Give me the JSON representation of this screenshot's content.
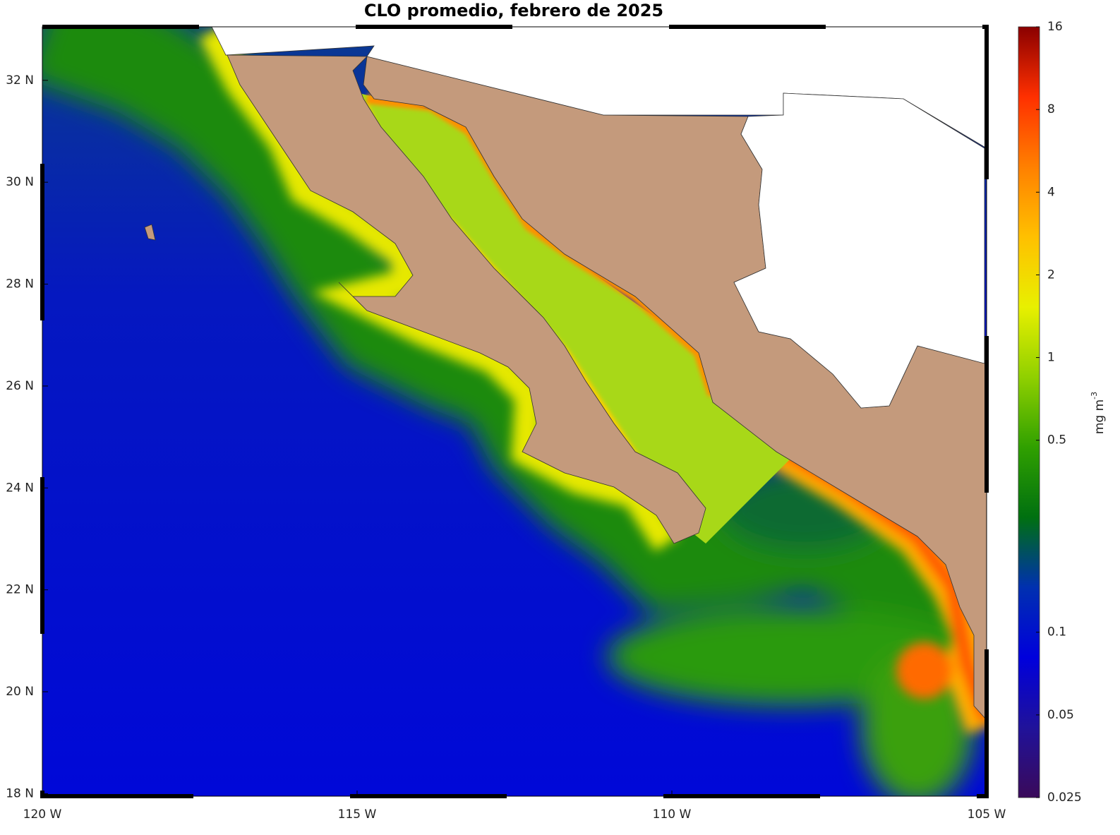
{
  "map": {
    "title": "CLO promedio, febrero de 2025",
    "xlim": [
      -120,
      -105
    ],
    "ylim": [
      17.95,
      33.05
    ],
    "xticks": [
      {
        "value": -120,
        "label": "120 W"
      },
      {
        "value": -115,
        "label": "115 W"
      },
      {
        "value": -110,
        "label": "110 W"
      },
      {
        "value": -105,
        "label": "105 W"
      }
    ],
    "yticks": [
      {
        "value": 18,
        "label": "18 N"
      },
      {
        "value": 20,
        "label": "20 N"
      },
      {
        "value": 22,
        "label": "22 N"
      },
      {
        "value": 24,
        "label": "24 N"
      },
      {
        "value": 26,
        "label": "26 N"
      },
      {
        "value": 28,
        "label": "28 N"
      },
      {
        "value": 30,
        "label": "30 N"
      },
      {
        "value": 32,
        "label": "32 N"
      }
    ],
    "colorbar": {
      "lim": [
        0.025,
        16
      ],
      "log_scale": true,
      "ticks": [
        0.025,
        0.05,
        0.1,
        0.5,
        1,
        2,
        4,
        8,
        16
      ],
      "unit": "mg m",
      "unit_exponent": "-3",
      "colormap": [
        "#3a0a5a",
        "#20129a",
        "#0000dc",
        "#0030b0",
        "#007010",
        "#30a000",
        "#90d000",
        "#e8f000",
        "#ffc000",
        "#ff8000",
        "#ff3000",
        "#8a0000"
      ]
    }
  }
}
